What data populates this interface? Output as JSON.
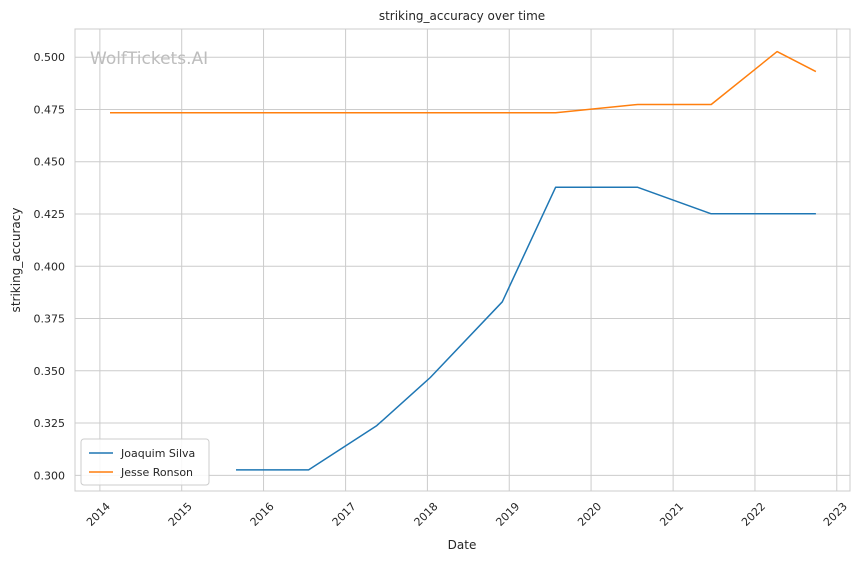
{
  "chart_data": {
    "type": "line",
    "title": "striking_accuracy over time",
    "xlabel": "Date",
    "ylabel": "striking_accuracy",
    "watermark": "WolfTickets.AI",
    "x_ticks": [
      "2014",
      "2015",
      "2016",
      "2017",
      "2018",
      "2019",
      "2020",
      "2021",
      "2022",
      "2023"
    ],
    "y_ticks": [
      "0.300",
      "0.325",
      "0.350",
      "0.375",
      "0.400",
      "0.425",
      "0.450",
      "0.475",
      "0.500"
    ],
    "xlim": [
      "2013-09-12",
      "2023-03-01"
    ],
    "ylim": [
      0.2925,
      0.5135
    ],
    "grid": true,
    "legend_position": "lower-left",
    "series": [
      {
        "name": "Joaquim Silva",
        "color": "#1f77b4",
        "points": [
          {
            "date": "2015-08-31",
            "y": 0.3026
          },
          {
            "date": "2016-07-20",
            "y": 0.3026
          },
          {
            "date": "2017-05-20",
            "y": 0.3238
          },
          {
            "date": "2018-01-14",
            "y": 0.3468
          },
          {
            "date": "2018-12-01",
            "y": 0.383
          },
          {
            "date": "2019-07-27",
            "y": 0.4378
          },
          {
            "date": "2020-07-27",
            "y": 0.4378
          },
          {
            "date": "2021-06-20",
            "y": 0.4251
          },
          {
            "date": "2022-09-30",
            "y": 0.4251
          }
        ]
      },
      {
        "name": "Jesse Ronson",
        "color": "#ff7f0e",
        "points": [
          {
            "date": "2014-02-15",
            "y": 0.4734
          },
          {
            "date": "2019-07-27",
            "y": 0.4734
          },
          {
            "date": "2020-07-27",
            "y": 0.4774
          },
          {
            "date": "2021-06-20",
            "y": 0.4774
          },
          {
            "date": "2022-04-10",
            "y": 0.5027
          },
          {
            "date": "2022-09-30",
            "y": 0.4931
          }
        ]
      }
    ]
  }
}
